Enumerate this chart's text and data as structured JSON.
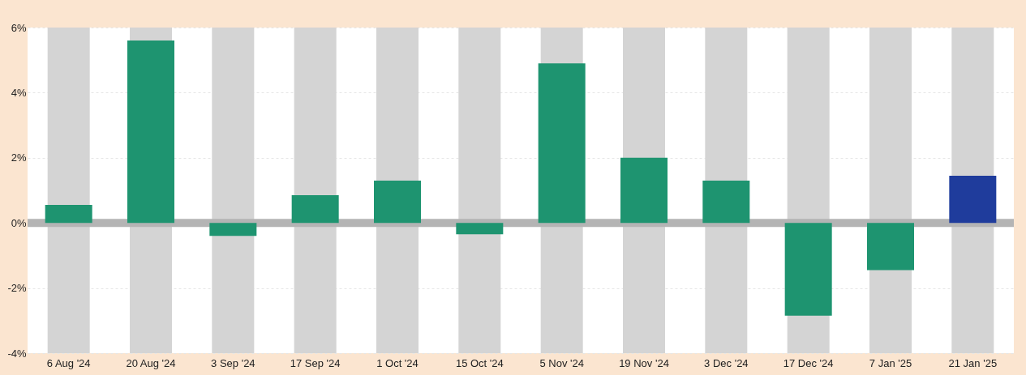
{
  "chart_data": {
    "type": "bar",
    "categories": [
      "6 Aug '24",
      "20 Aug '24",
      "3 Sep '24",
      "17 Sep '24",
      "1 Oct '24",
      "15 Oct '24",
      "5 Nov '24",
      "19 Nov '24",
      "3 Dec '24",
      "17 Dec '24",
      "7 Jan '25",
      "21 Jan '25"
    ],
    "values": [
      0.55,
      5.6,
      -0.4,
      0.85,
      1.3,
      -0.35,
      4.9,
      2.0,
      1.3,
      -2.85,
      -1.45,
      1.45
    ],
    "colors": [
      "#1e9470",
      "#1e9470",
      "#1e9470",
      "#1e9470",
      "#1e9470",
      "#1e9470",
      "#1e9470",
      "#1e9470",
      "#1e9470",
      "#1e9470",
      "#1e9470",
      "#1f3c9c"
    ],
    "ylim": [
      -4,
      6
    ],
    "yticks": [
      {
        "value": -4,
        "label": "-4%"
      },
      {
        "value": -2,
        "label": "-2%"
      },
      {
        "value": 0,
        "label": "0%"
      },
      {
        "value": 2,
        "label": "2%"
      },
      {
        "value": 4,
        "label": "4%"
      },
      {
        "value": 6,
        "label": "6%"
      }
    ],
    "grid": "y",
    "bands": [
      {
        "axis": "x",
        "from": "6 Aug '24",
        "to": "6 Aug '24",
        "color": "#d4d4d4"
      },
      {
        "axis": "x",
        "from": "20 Aug '24",
        "to": "20 Aug '24",
        "color": "#d4d4d4"
      },
      {
        "axis": "x",
        "from": "3 Sep '24",
        "to": "3 Sep '24",
        "color": "#d4d4d4"
      },
      {
        "axis": "x",
        "from": "17 Sep '24",
        "to": "17 Sep '24",
        "color": "#d4d4d4"
      },
      {
        "axis": "x",
        "from": "1 Oct '24",
        "to": "1 Oct '24",
        "color": "#d4d4d4"
      },
      {
        "axis": "x",
        "from": "15 Oct '24",
        "to": "15 Oct '24",
        "color": "#d4d4d4"
      },
      {
        "axis": "x",
        "from": "5 Nov '24",
        "to": "5 Nov '24",
        "color": "#d4d4d4"
      },
      {
        "axis": "x",
        "from": "19 Nov '24",
        "to": "19 Nov '24",
        "color": "#d4d4d4"
      },
      {
        "axis": "x",
        "from": "3 Dec '24",
        "to": "3 Dec '24",
        "color": "#d4d4d4"
      },
      {
        "axis": "x",
        "from": "17 Dec '24",
        "to": "17 Dec '24",
        "color": "#d4d4d4"
      },
      {
        "axis": "x",
        "from": "7 Jan '25",
        "to": "7 Jan '25",
        "color": "#d4d4d4"
      },
      {
        "axis": "x",
        "from": "21 Jan '25",
        "to": "21 Jan '25",
        "color": "#d4d4d4"
      }
    ],
    "ref_lines": [
      {
        "axis": "y",
        "value": 0,
        "color": "#b4b4b4"
      }
    ]
  }
}
